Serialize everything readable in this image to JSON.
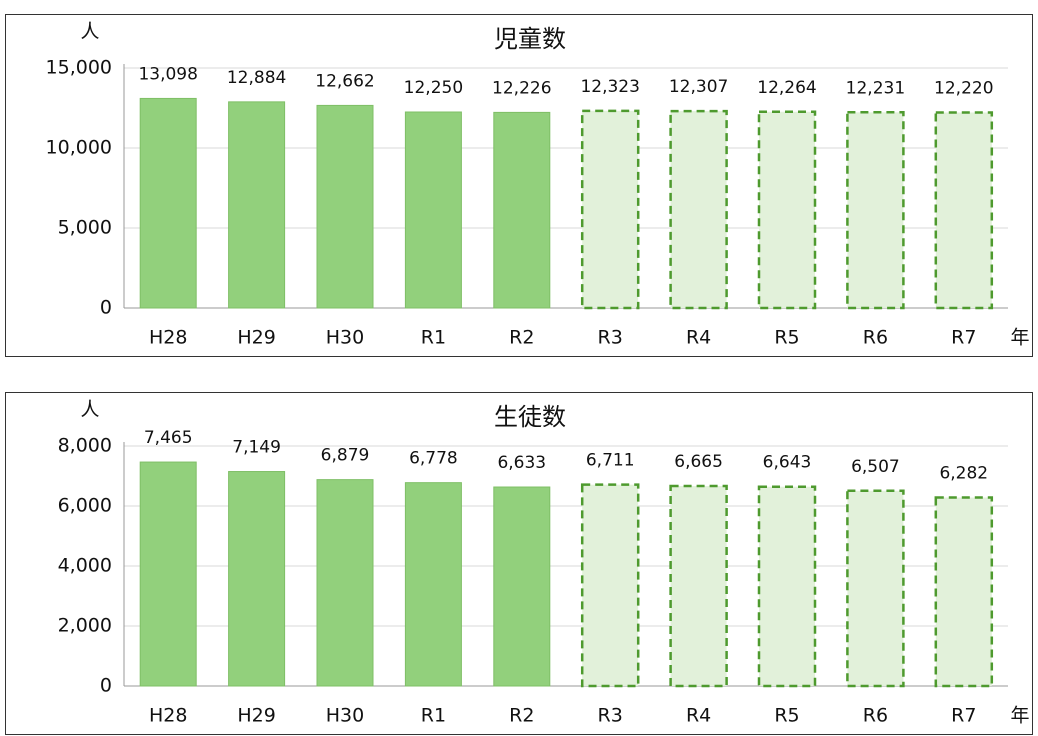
{
  "chart_data": [
    {
      "type": "bar",
      "title": "児童数",
      "y_label": "人",
      "x_label": "年",
      "categories": [
        "H28",
        "H29",
        "H30",
        "R1",
        "R2",
        "R3",
        "R4",
        "R5",
        "R6",
        "R7"
      ],
      "values": [
        13098,
        12884,
        12662,
        12250,
        12226,
        12323,
        12307,
        12264,
        12231,
        12220
      ],
      "value_labels": [
        "13,098",
        "12,884",
        "12,662",
        "12,250",
        "12,226",
        "12,323",
        "12,307",
        "12,264",
        "12,231",
        "12,220"
      ],
      "styles": [
        "solid",
        "solid",
        "solid",
        "solid",
        "solid",
        "dashed",
        "dashed",
        "dashed",
        "dashed",
        "dashed"
      ],
      "color": "#92d07c",
      "dashed_fill": "#e2f1da",
      "dashed_stroke": "#4e9a2e",
      "ylim": [
        0,
        15000
      ],
      "yticks": [
        0,
        {
          "value": 5000,
          "label": "5,000"
        },
        {
          "value": 10000,
          "label": "10,000"
        },
        {
          "value": 15000,
          "label": "15,000"
        }
      ],
      "grid": true
    },
    {
      "type": "bar",
      "title": "生徒数",
      "y_label": "人",
      "x_label": "年",
      "categories": [
        "H28",
        "H29",
        "H30",
        "R1",
        "R2",
        "R3",
        "R4",
        "R5",
        "R6",
        "R7"
      ],
      "values": [
        7465,
        7149,
        6879,
        6778,
        6633,
        6711,
        6665,
        6643,
        6507,
        6282
      ],
      "value_labels": [
        "7,465",
        "7,149",
        "6,879",
        "6,778",
        "6,633",
        "6,711",
        "6,665",
        "6,643",
        "6,507",
        "6,282"
      ],
      "styles": [
        "solid",
        "solid",
        "solid",
        "solid",
        "solid",
        "dashed",
        "dashed",
        "dashed",
        "dashed",
        "dashed"
      ],
      "color": "#92d07c",
      "dashed_fill": "#e2f1da",
      "dashed_stroke": "#4e9a2e",
      "ylim": [
        0,
        8000
      ],
      "yticks": [
        0,
        {
          "value": 2000,
          "label": "2,000"
        },
        {
          "value": 4000,
          "label": "4,000"
        },
        {
          "value": 6000,
          "label": "6,000"
        },
        {
          "value": 8000,
          "label": "8,000"
        }
      ],
      "grid": true
    }
  ]
}
